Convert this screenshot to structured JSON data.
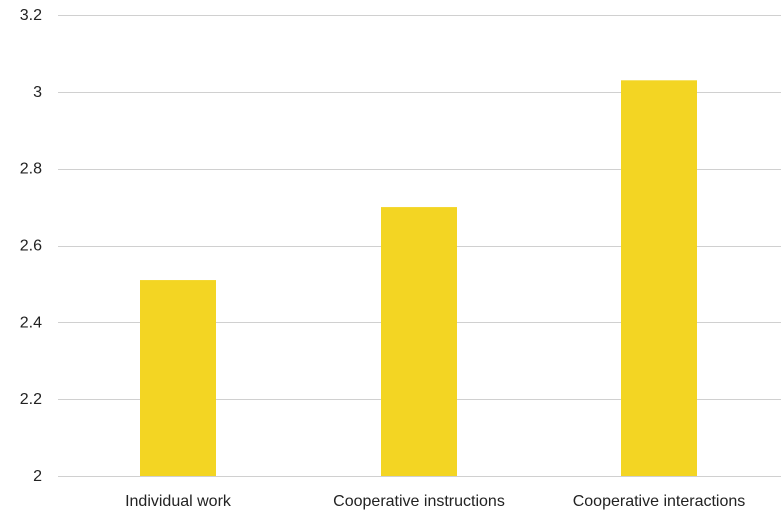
{
  "chart_data": {
    "type": "bar",
    "categories": [
      "Individual work",
      "Cooperative instructions",
      "Cooperative interactions"
    ],
    "values": [
      2.51,
      2.7,
      3.03
    ],
    "ylim": [
      2,
      3.2
    ],
    "yticks": [
      "2",
      "2.2",
      "2.4",
      "2.6",
      "2.8",
      "3",
      "3.2"
    ],
    "ytick_values": [
      2,
      2.2,
      2.4,
      2.6,
      2.8,
      3,
      3.2
    ],
    "grid": true,
    "bar_color": "#f3d523",
    "grid_color": "#d0d0d0"
  }
}
